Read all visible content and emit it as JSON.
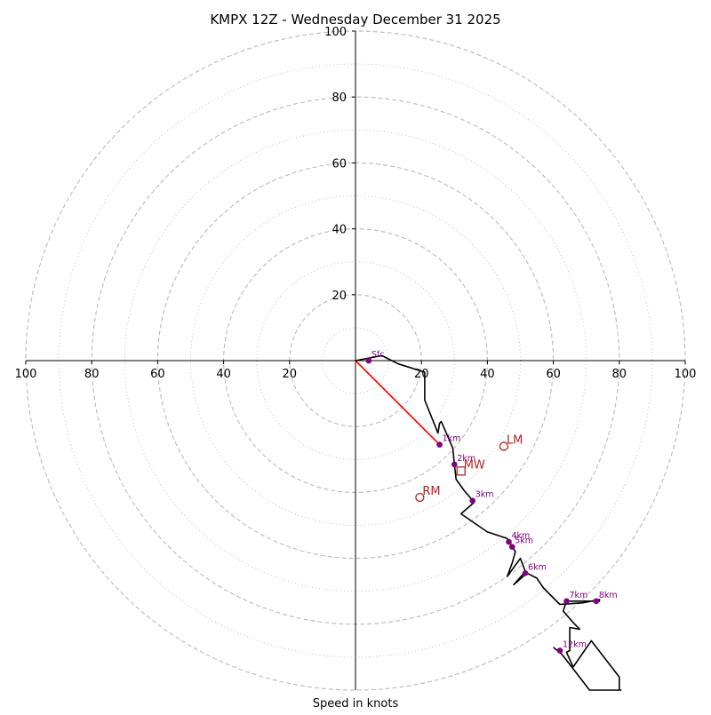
{
  "chart_data": {
    "type": "hodograph",
    "title": "KMPX 12Z - Wednesday December 31 2025",
    "xlabel": "Speed in knots",
    "ylabel": "",
    "xlim": [
      -100,
      100
    ],
    "ylim": [
      -100,
      100
    ],
    "units": "knots",
    "rings_major": [
      20,
      40,
      60,
      80,
      100
    ],
    "rings_minor": [
      10,
      30,
      50,
      70,
      90
    ],
    "x_tick_labels": [
      "100",
      "80",
      "60",
      "40",
      "20",
      "20",
      "40",
      "60",
      "80",
      "100"
    ],
    "x_tick_values": [
      -100,
      -80,
      -60,
      -40,
      -20,
      20,
      40,
      60,
      80,
      100
    ],
    "y_tick_labels": [
      "20",
      "40",
      "60",
      "80",
      "100"
    ],
    "y_tick_values": [
      20,
      40,
      60,
      80,
      100
    ],
    "trace": [
      [
        0,
        0
      ],
      [
        8,
        1.5
      ],
      [
        13,
        -1
      ],
      [
        21,
        -3.5
      ],
      [
        21,
        -12
      ],
      [
        25,
        -22
      ],
      [
        25.5,
        -19
      ],
      [
        26,
        -18.5
      ],
      [
        29.5,
        -26.5
      ],
      [
        30,
        -31.5
      ],
      [
        30.5,
        -36
      ],
      [
        33,
        -39.5
      ],
      [
        36,
        -43
      ],
      [
        32,
        -46.5
      ],
      [
        40,
        -52
      ],
      [
        46,
        -54
      ],
      [
        48.5,
        -58
      ],
      [
        47.5,
        -61.5
      ],
      [
        46,
        -65.5
      ],
      [
        50,
        -60
      ],
      [
        51.5,
        -64
      ],
      [
        48,
        -68
      ],
      [
        52,
        -64.5
      ],
      [
        55,
        -66
      ],
      [
        57,
        -69
      ],
      [
        62,
        -74
      ],
      [
        69,
        -73.5
      ],
      [
        74,
        -72.5
      ],
      [
        74,
        -73
      ],
      [
        64,
        -73
      ],
      [
        63,
        -76
      ],
      [
        66,
        -79.5
      ],
      [
        68,
        -81.5
      ],
      [
        65,
        -81
      ],
      [
        65,
        -88
      ],
      [
        64,
        -88.5
      ],
      [
        66,
        -93
      ],
      [
        71.5,
        -85
      ],
      [
        80,
        -96
      ],
      [
        80,
        -100
      ],
      [
        80.5,
        -100
      ],
      [
        71,
        -100
      ],
      [
        62.5,
        -89
      ],
      [
        60,
        -87
      ]
    ],
    "height_markers": [
      {
        "label": "Sfc",
        "u": 4,
        "v": 0
      },
      {
        "label": "1km",
        "u": 25.5,
        "v": -25.5
      },
      {
        "label": "2km",
        "u": 30,
        "v": -31.5
      },
      {
        "label": "3km",
        "u": 35.5,
        "v": -42.5
      },
      {
        "label": "4km",
        "u": 46.5,
        "v": -55
      },
      {
        "label": "5km",
        "u": 47.5,
        "v": -56.5
      },
      {
        "label": "6km",
        "u": 51.5,
        "v": -64.5
      },
      {
        "label": "7km",
        "u": 64,
        "v": -73
      },
      {
        "label": "8km",
        "u": 73,
        "v": -73
      },
      {
        "label": "12km",
        "u": 62,
        "v": -88
      }
    ],
    "storm_motion": [
      {
        "label": "LM",
        "u": 45,
        "v": -26,
        "marker": "circle"
      },
      {
        "label": "MW",
        "u": 32,
        "v": -33.5,
        "marker": "square"
      },
      {
        "label": "RM",
        "u": 19.5,
        "v": -41.5,
        "marker": "circle"
      }
    ],
    "shear_vector": {
      "from": [
        0,
        0
      ],
      "to": [
        25.5,
        -25.5
      ]
    },
    "colors": {
      "trace": "#000000",
      "marker": "#800080",
      "storm": "#b22222",
      "shear": "#ff0000",
      "grid": "#bbbbbb"
    }
  }
}
